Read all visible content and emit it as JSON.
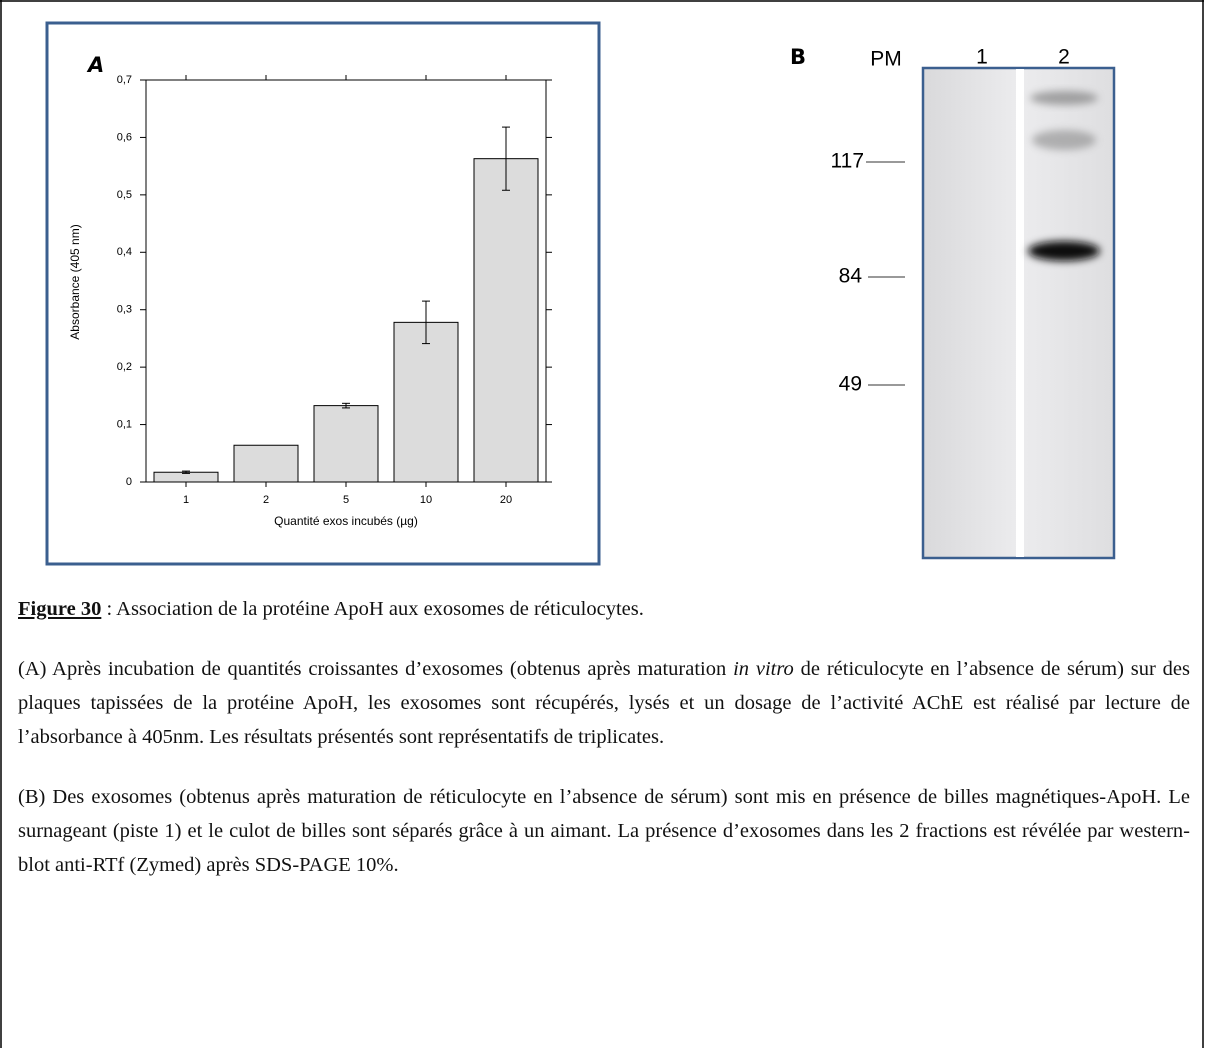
{
  "chart_data": {
    "type": "bar",
    "panel_label": "A",
    "x_label": "Quantité exos incubés (µg)",
    "y_label": "Absorbance (405 nm)",
    "categories": [
      "1",
      "2",
      "5",
      "10",
      "20"
    ],
    "values": [
      0.017,
      0.064,
      0.133,
      0.278,
      0.563
    ],
    "errors": [
      0.002,
      0,
      0.004,
      0.037,
      0.055
    ],
    "color": "#dcdcdc",
    "ylim": [
      0,
      0.7
    ],
    "yticks": [
      0,
      {
        "value": 0.1,
        "label": "0,1"
      },
      {
        "value": 0.2,
        "label": "0,2"
      },
      {
        "value": 0.3,
        "label": "0,3"
      },
      {
        "value": 0.4,
        "label": "0,4"
      },
      {
        "value": 0.5,
        "label": "0,5"
      },
      {
        "value": 0.6,
        "label": "0,6"
      },
      {
        "value": 0.7,
        "label": "0,7"
      }
    ],
    "grid": false
  },
  "blot": {
    "panel_label": "B",
    "marker_header": "PM",
    "lanes": [
      "1",
      "2"
    ],
    "markers": [
      "117",
      "84",
      "49"
    ]
  },
  "caption": {
    "figure_label": "Figure 30",
    "title": " : Association de la protéine ApoH aux exosomes de réticulocytes.",
    "paragraph_a": [
      "(A) Après incubation de quantités croissantes d’exosomes (obtenus après maturation ",
      "in vitro",
      " de réticulocyte en l’absence de sérum) sur des plaques tapissées de la protéine ApoH, les exosomes sont récupérés, lysés et un dosage de l’activité AChE est réalisé par lecture de l’absorbance à 405nm. Les résultats présentés sont représentatifs de triplicates."
    ],
    "paragraph_b": "(B) Des exosomes (obtenus après maturation de réticulocyte en l’absence de sérum) sont mis en présence de billes magnétiques-ApoH. Le surnageant (piste 1) et le culot de billes sont séparés grâce à un aimant. La présence d’exosomes dans les 2 fractions est révélée par western-blot anti-RTf (Zymed) après SDS-PAGE 10%."
  }
}
